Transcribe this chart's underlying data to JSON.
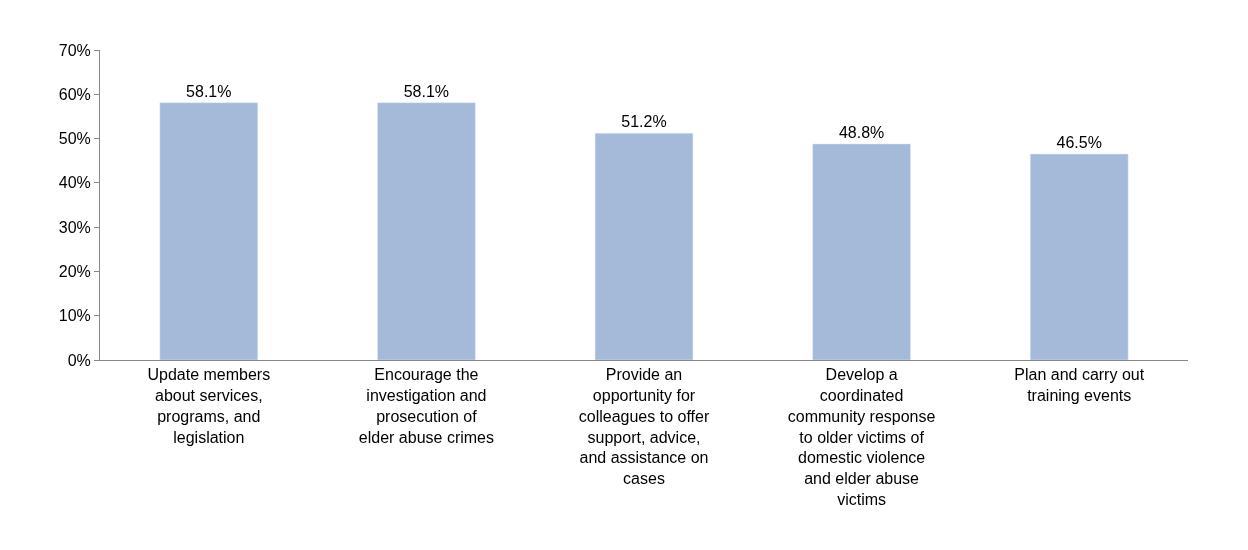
{
  "chart_data": {
    "type": "bar",
    "categories": [
      "Update members about services, programs, and legislation",
      "Encourage the investigation and prosecution of elder abuse crimes",
      "Provide an opportunity for colleagues to offer support, advice, and assistance on cases",
      "Develop a coordinated community response to older victims of domestic violence and elder abuse victims",
      "Plan and carry out training events"
    ],
    "values": [
      58.1,
      58.1,
      51.2,
      48.8,
      46.5
    ],
    "value_labels": [
      "58.1%",
      "58.1%",
      "51.2%",
      "48.8%",
      "46.5%"
    ],
    "color": "#a5b9d9",
    "ylim": [
      0,
      70
    ],
    "yticks": [
      {
        "value": 0,
        "label": "0%"
      },
      {
        "value": 10,
        "label": "10%"
      },
      {
        "value": 20,
        "label": "20%"
      },
      {
        "value": 30,
        "label": "30%"
      },
      {
        "value": 40,
        "label": "40%"
      },
      {
        "value": 50,
        "label": "50%"
      },
      {
        "value": 60,
        "label": "60%"
      },
      {
        "value": 70,
        "label": "70%"
      }
    ],
    "legend": false
  }
}
